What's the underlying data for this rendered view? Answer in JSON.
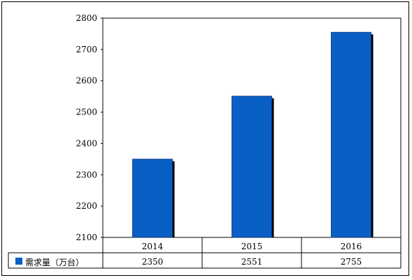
{
  "chart_data": {
    "type": "bar",
    "categories": [
      "2014",
      "2015",
      "2016"
    ],
    "series": [
      {
        "name": "需求量（万台）",
        "values": [
          2350,
          2551,
          2755
        ],
        "color": "#0a5fc4"
      }
    ],
    "ylim": [
      2100,
      2800
    ],
    "yticks": [
      2100,
      2200,
      2300,
      2400,
      2500,
      2600,
      2700,
      2800
    ],
    "ytick_labels": [
      "2100",
      "2200",
      "2300",
      "2400",
      "2500",
      "2600",
      "2700",
      "2800"
    ],
    "grid": false,
    "legend": "data-table",
    "table": {
      "row_label": "需求量（万台）",
      "values": [
        "2350",
        "2551",
        "2755"
      ]
    },
    "colors": {
      "bar": "#0a5fc4",
      "bar_edge": "#0a2f7a",
      "shadow": "#000000",
      "axis": "#000000"
    }
  }
}
